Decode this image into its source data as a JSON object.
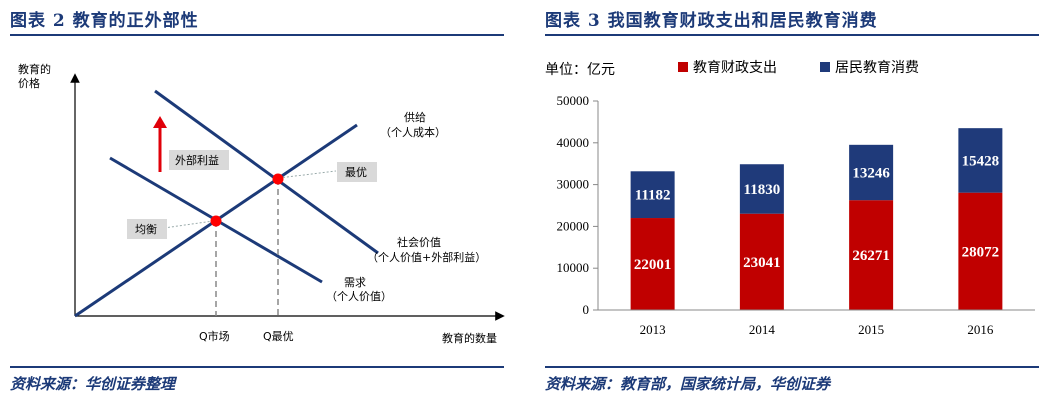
{
  "left_panel": {
    "title": "图表 2   教育的正外部性",
    "source": "资料来源：华创证券整理",
    "y_axis_label_line1": "教育的",
    "y_axis_label_line2": "价格",
    "x_axis_label": "教育的数量",
    "supply_label_line1": "供给",
    "supply_label_line2": "（个人成本）",
    "social_label_line1": "社会价值",
    "social_label_line2": "（个人价值+外部利益）",
    "demand_label_line1": "需求",
    "demand_label_line2": "（个人价值）",
    "optimal_box": "最优",
    "equilibrium_box": "均衡",
    "externality_box": "外部利益",
    "q_market": "Q市场",
    "q_optimal": "Q最优",
    "colors": {
      "lines": "#1c3a78",
      "points": "#ff0000",
      "arrow": "#e0000a",
      "box": "#d9d9d9"
    }
  },
  "right_panel": {
    "title": "图表 3   我国教育财政支出和居民教育消费",
    "source": "资料来源：教育部，国家统计局，华创证券",
    "unit": "单位：亿元"
  },
  "chart_data": {
    "type": "bar",
    "stacked": true,
    "categories": [
      "2013",
      "2014",
      "2015",
      "2016"
    ],
    "series": [
      {
        "name": "教育财政支出",
        "values": [
          22001,
          23041,
          26271,
          28072
        ],
        "color": "#c00000"
      },
      {
        "name": "居民教育消费",
        "values": [
          11182,
          11830,
          13246,
          15428
        ],
        "color": "#1f3a7a"
      }
    ],
    "ylim": [
      0,
      50000
    ],
    "yticks": [
      0,
      10000,
      20000,
      30000,
      40000,
      50000
    ],
    "legend_position": "top",
    "grid": false
  }
}
